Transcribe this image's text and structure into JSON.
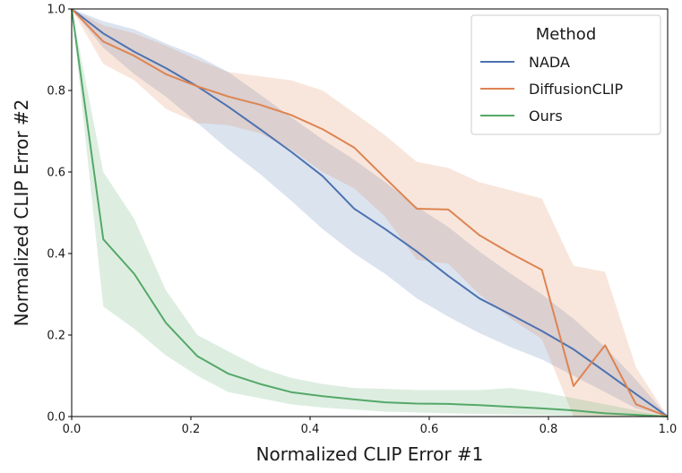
{
  "chart_data": {
    "type": "line",
    "xlabel": "Normalized CLIP Error #1",
    "ylabel": "Normalized CLIP Error #2",
    "xlim": [
      0.0,
      1.0
    ],
    "ylim": [
      0.0,
      1.0
    ],
    "xticks": [
      "0.0",
      "0.2",
      "0.4",
      "0.6",
      "0.8",
      "1.0"
    ],
    "yticks": [
      "0.0",
      "0.2",
      "0.4",
      "0.6",
      "0.8",
      "1.0"
    ],
    "grid": false,
    "legend": {
      "title": "Method",
      "placement": "top-right"
    },
    "series": [
      {
        "name": "NADA",
        "color": "#4c72b0",
        "x": [
          0.0,
          0.053,
          0.105,
          0.158,
          0.211,
          0.263,
          0.316,
          0.368,
          0.421,
          0.474,
          0.526,
          0.579,
          0.632,
          0.684,
          0.737,
          0.789,
          0.842,
          0.895,
          0.947,
          1.0
        ],
        "y": [
          1.0,
          0.94,
          0.895,
          0.855,
          0.81,
          0.76,
          0.705,
          0.65,
          0.59,
          0.51,
          0.46,
          0.405,
          0.345,
          0.29,
          0.25,
          0.21,
          0.165,
          0.11,
          0.055,
          0.0
        ],
        "upper": [
          1.0,
          0.97,
          0.95,
          0.915,
          0.885,
          0.845,
          0.79,
          0.735,
          0.68,
          0.63,
          0.575,
          0.515,
          0.465,
          0.405,
          0.35,
          0.3,
          0.24,
          0.17,
          0.09,
          0.0
        ],
        "lower": [
          1.0,
          0.905,
          0.84,
          0.785,
          0.72,
          0.655,
          0.595,
          0.53,
          0.46,
          0.4,
          0.35,
          0.29,
          0.245,
          0.205,
          0.17,
          0.14,
          0.1,
          0.06,
          0.02,
          0.0
        ]
      },
      {
        "name": "DiffusionCLIP",
        "color": "#dd8452",
        "x": [
          0.0,
          0.053,
          0.105,
          0.158,
          0.211,
          0.263,
          0.316,
          0.368,
          0.421,
          0.474,
          0.526,
          0.579,
          0.632,
          0.684,
          0.737,
          0.789,
          0.842,
          0.895,
          0.947,
          1.0
        ],
        "y": [
          1.0,
          0.92,
          0.885,
          0.84,
          0.81,
          0.785,
          0.765,
          0.74,
          0.705,
          0.66,
          0.585,
          0.51,
          0.508,
          0.445,
          0.4,
          0.36,
          0.075,
          0.175,
          0.03,
          0.0
        ],
        "upper": [
          1.0,
          0.96,
          0.94,
          0.91,
          0.875,
          0.845,
          0.835,
          0.825,
          0.8,
          0.745,
          0.69,
          0.625,
          0.61,
          0.575,
          0.555,
          0.535,
          0.37,
          0.355,
          0.12,
          0.0
        ],
        "lower": [
          1.0,
          0.865,
          0.825,
          0.755,
          0.72,
          0.715,
          0.695,
          0.655,
          0.6,
          0.56,
          0.49,
          0.385,
          0.375,
          0.3,
          0.24,
          0.19,
          0.0,
          0.0,
          0.0,
          0.0
        ]
      },
      {
        "name": "Ours",
        "color": "#55a868",
        "x": [
          0.0,
          0.053,
          0.105,
          0.158,
          0.211,
          0.263,
          0.316,
          0.368,
          0.421,
          0.474,
          0.526,
          0.579,
          0.632,
          0.684,
          0.737,
          0.789,
          0.842,
          0.895,
          0.947,
          1.0
        ],
        "y": [
          1.0,
          0.435,
          0.35,
          0.23,
          0.148,
          0.105,
          0.08,
          0.06,
          0.05,
          0.042,
          0.035,
          0.032,
          0.031,
          0.028,
          0.024,
          0.02,
          0.015,
          0.008,
          0.004,
          0.0
        ],
        "upper": [
          1.0,
          0.6,
          0.485,
          0.31,
          0.2,
          0.16,
          0.12,
          0.095,
          0.08,
          0.07,
          0.068,
          0.065,
          0.065,
          0.065,
          0.07,
          0.06,
          0.045,
          0.03,
          0.015,
          0.0
        ],
        "lower": [
          1.0,
          0.27,
          0.215,
          0.15,
          0.1,
          0.06,
          0.045,
          0.03,
          0.022,
          0.017,
          0.012,
          0.01,
          0.008,
          0.006,
          0.005,
          0.004,
          0.002,
          0.0,
          0.0,
          0.0
        ]
      }
    ]
  }
}
